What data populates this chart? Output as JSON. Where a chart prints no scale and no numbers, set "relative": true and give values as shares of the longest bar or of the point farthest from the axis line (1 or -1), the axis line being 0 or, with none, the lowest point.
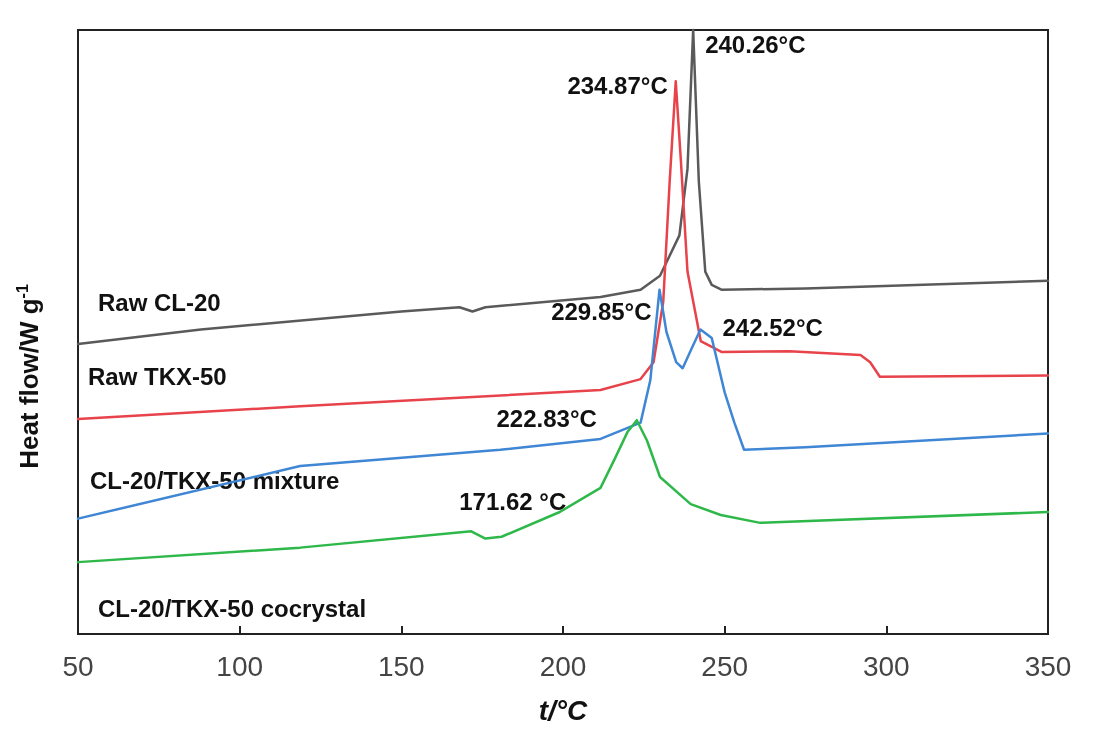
{
  "chart_data": {
    "type": "line",
    "relative": true,
    "xlabel": "t/°C",
    "ylabel": "Heat flow/W g$^{-1}$",
    "xlim": [
      50,
      350
    ],
    "xticks": [
      50,
      100,
      150,
      200,
      250,
      300,
      350
    ],
    "grid": false,
    "legend": false,
    "marker": "none",
    "line_style": "solid",
    "series": [
      {
        "name": "Raw CL-20",
        "color": "#5a5a5a",
        "x": [
          50,
          88,
          150,
          168,
          172,
          176,
          211.6,
          224,
          230,
          236,
          238.5,
          240.26,
          242,
          244,
          246,
          249,
          275,
          350
        ],
        "values": [
          0.48,
          0.504,
          0.534,
          0.541,
          0.534,
          0.541,
          0.558,
          0.57,
          0.593,
          0.66,
          0.77,
          1,
          0.75,
          0.6,
          0.578,
          0.57,
          0.572,
          0.585
        ]
      },
      {
        "name": "Raw TKX-50",
        "color": "#e8424b",
        "x": [
          50,
          118.7,
          211.6,
          224,
          228,
          231,
          233,
          234.87,
          236.5,
          238.5,
          242.6,
          249,
          270,
          292,
          295,
          298,
          350
        ],
        "values": [
          0.356,
          0.377,
          0.404,
          0.422,
          0.45,
          0.55,
          0.75,
          0.915,
          0.78,
          0.6,
          0.485,
          0.467,
          0.468,
          0.462,
          0.45,
          0.426,
          0.428
        ]
      },
      {
        "name": "CL-20/TKX-50 mixture",
        "color": "#3f86d4",
        "x": [
          50,
          118.7,
          180.6,
          211.6,
          224,
          227,
          229.85,
          232,
          235,
          237,
          240,
          242.52,
          246,
          250,
          253,
          256,
          260,
          275,
          350
        ],
        "values": [
          0.191,
          0.278,
          0.305,
          0.323,
          0.35,
          0.42,
          0.57,
          0.5,
          0.45,
          0.44,
          0.475,
          0.504,
          0.49,
          0.4,
          0.35,
          0.305,
          0.306,
          0.309,
          0.332
        ]
      },
      {
        "name": "CL-20/TKX-50 cocrystal",
        "color": "#2fb84a",
        "x": [
          50,
          118.7,
          171.62,
          176,
          181,
          199,
          211.6,
          216,
          220,
          222.83,
          226,
          230,
          239.5,
          248.8,
          261,
          350
        ],
        "values": [
          0.119,
          0.143,
          0.17,
          0.158,
          0.161,
          0.202,
          0.242,
          0.29,
          0.335,
          0.354,
          0.32,
          0.26,
          0.215,
          0.197,
          0.184,
          0.202
        ]
      }
    ],
    "annotations": [
      {
        "text": "240.26°C",
        "x": 240.26,
        "y": 1
      },
      {
        "text": "234.87°C",
        "x": 234.87,
        "y": 0.915
      },
      {
        "text": "229.85°C",
        "x": 229.85,
        "y": 0.57
      },
      {
        "text": "242.52°C",
        "x": 242.52,
        "y": 0.504
      },
      {
        "text": "222.83°C",
        "x": 222.83,
        "y": 0.354
      },
      {
        "text": "171.62 °C",
        "x": 171.62,
        "y": 0.17
      }
    ]
  }
}
